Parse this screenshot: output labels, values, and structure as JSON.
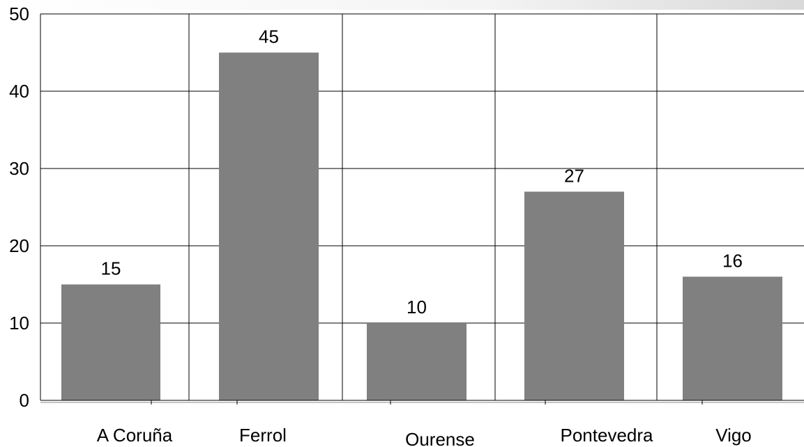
{
  "chart_data": {
    "type": "bar",
    "categories": [
      "A Coruña",
      "Ferrol",
      "Ourense",
      "Pontevedra",
      "Vigo"
    ],
    "values": [
      15,
      45,
      10,
      27,
      16
    ],
    "data_labels": [
      "15",
      "45",
      "10",
      "27",
      "16"
    ],
    "yticks": [
      "0",
      "10",
      "20",
      "30",
      "40",
      "50"
    ],
    "ylim": [
      0,
      50
    ],
    "grid": true,
    "title": "",
    "xlabel": "",
    "ylabel": "",
    "colors": {
      "bar": "#808080",
      "grid": "#000000",
      "background": "#ffffff"
    }
  }
}
